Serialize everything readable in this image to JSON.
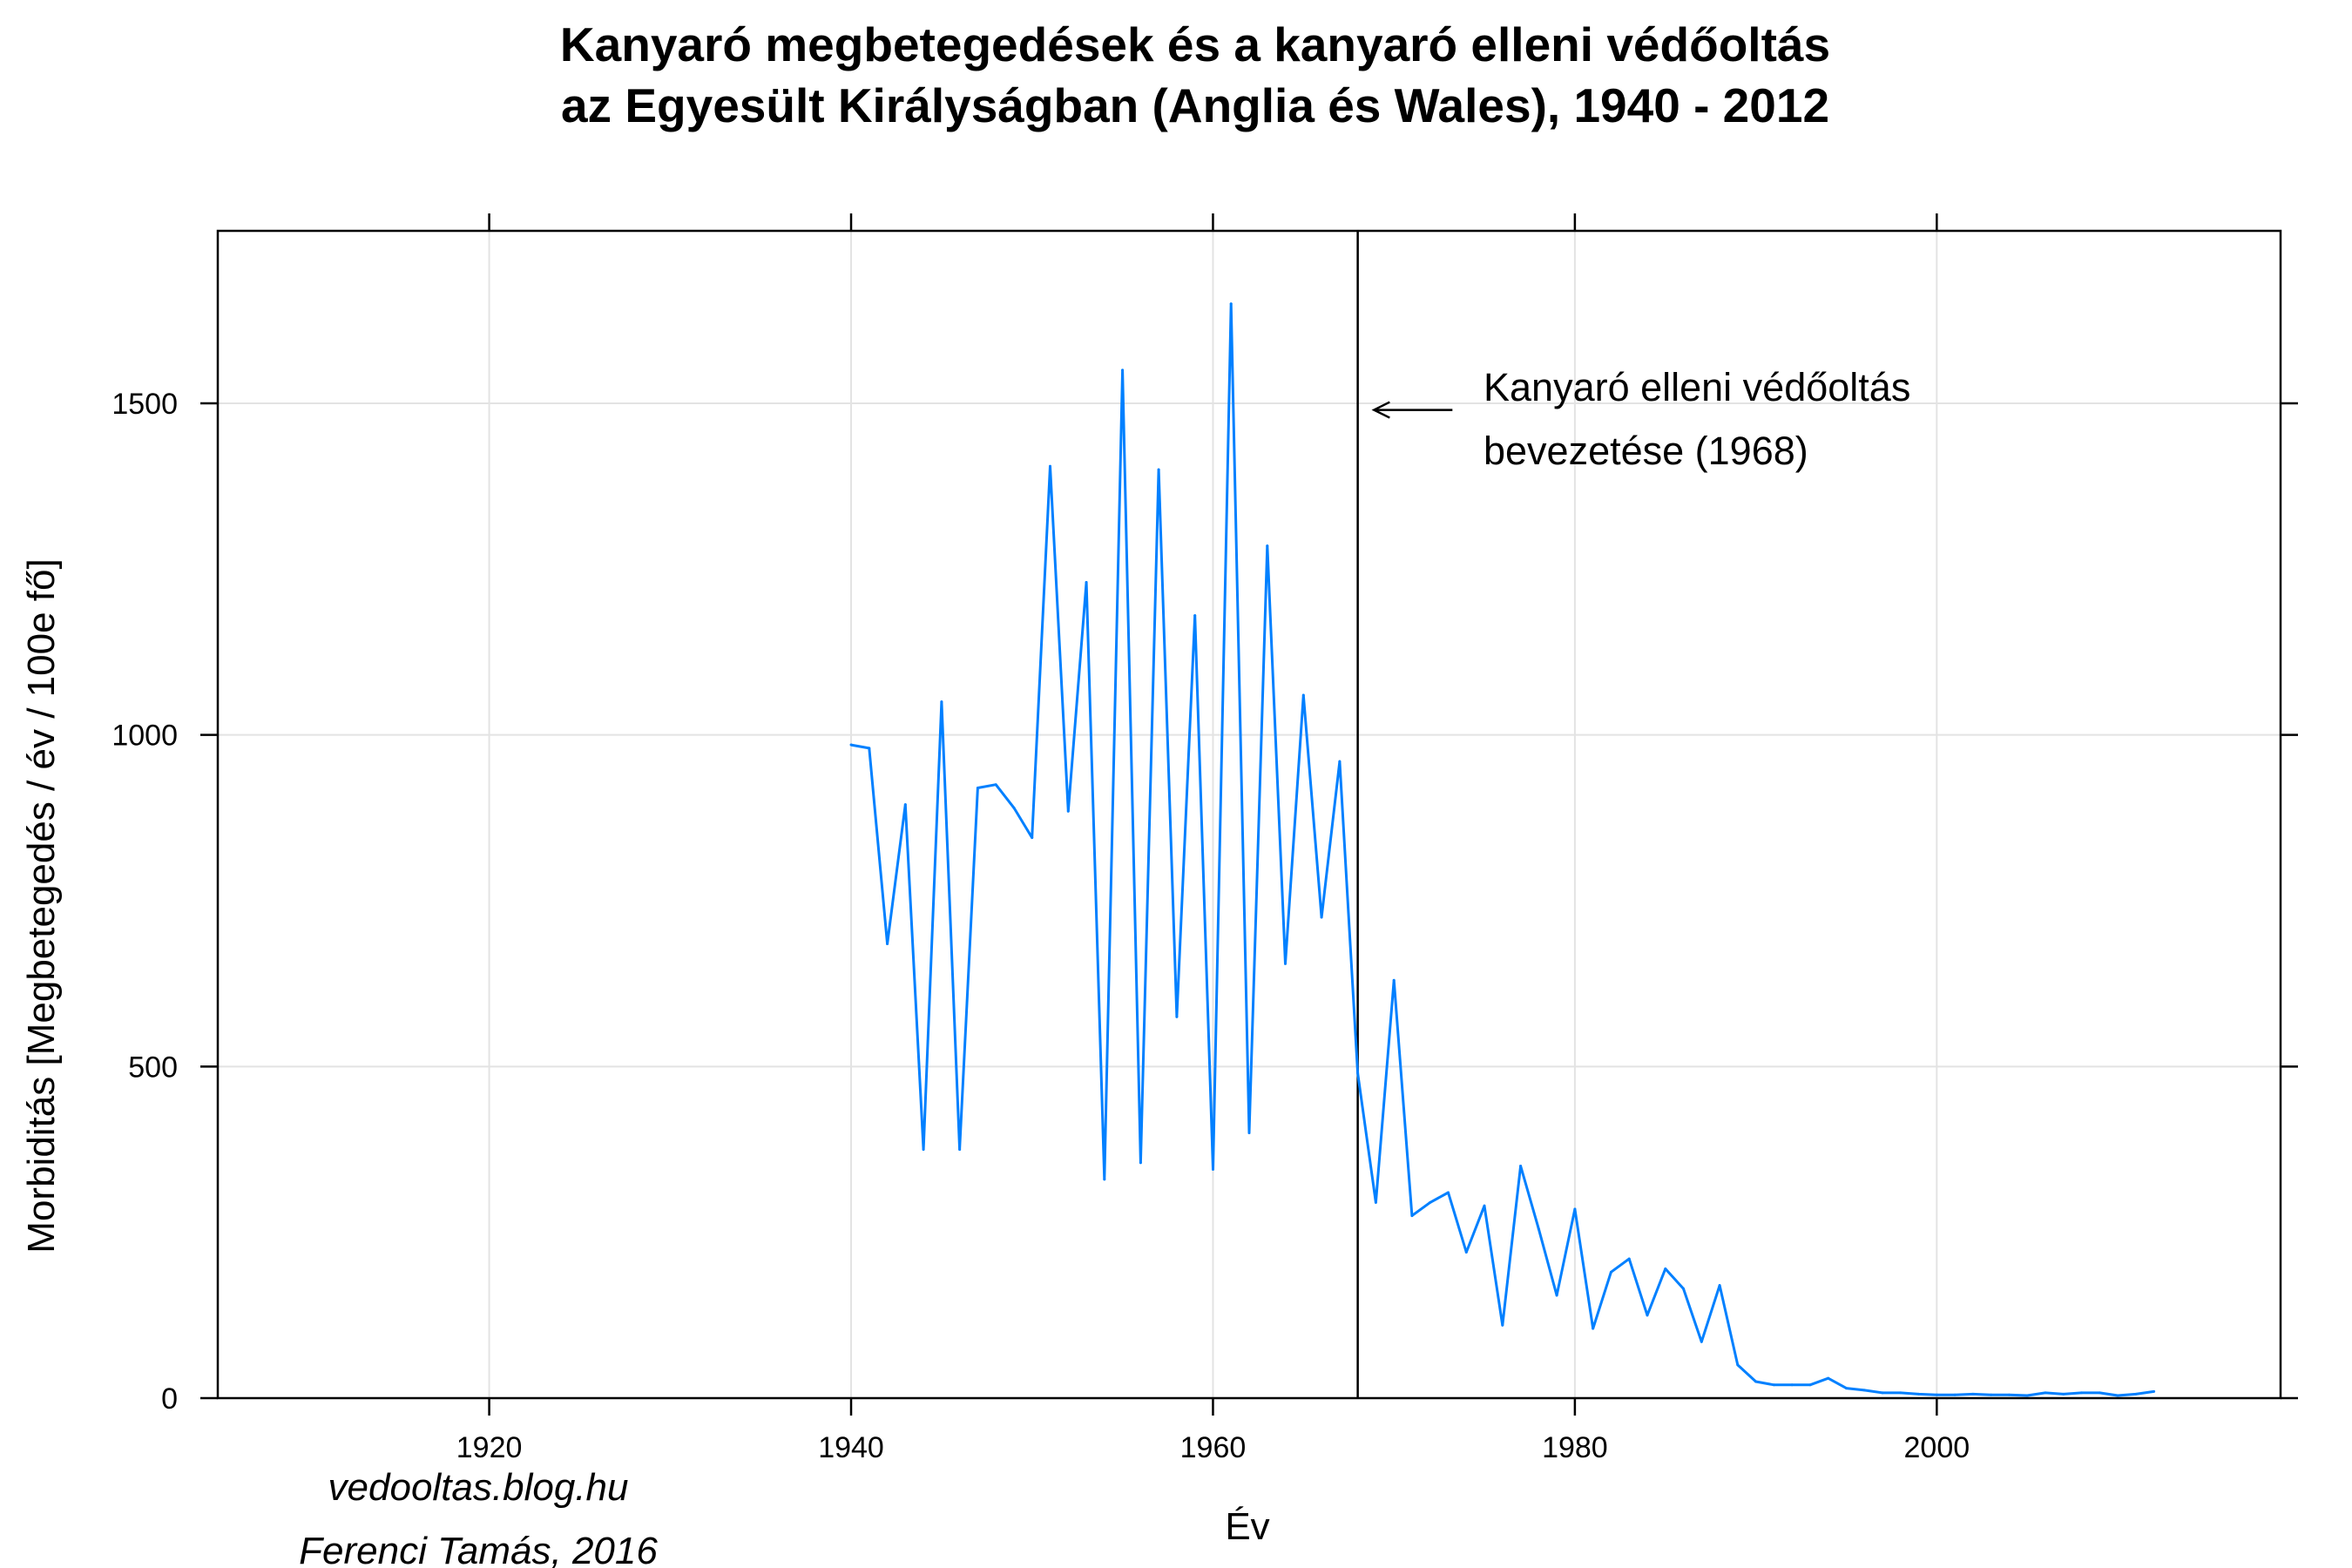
{
  "chart_data": {
    "type": "line",
    "title": "Kanyaró megbetegedések és a kanyaró elleni védőoltás",
    "subtitle": "az Egyesült Királyságban (Anglia és Wales), 1940 - 2012",
    "xlabel": "Év",
    "ylabel": "Morbiditás [Megbetegedés / év / 100e fő]",
    "xlim": [
      1905,
      2019
    ],
    "ylim": [
      0,
      1760
    ],
    "xticks": [
      1920,
      1940,
      1960,
      1980,
      2000
    ],
    "yticks": [
      0,
      500,
      1000,
      1500
    ],
    "grid": true,
    "line_color": "#0080ff",
    "vline": {
      "x": 1968,
      "color": "#000000"
    },
    "annotation": {
      "line1": "Kanyaró elleni védőoltás",
      "line2": "bevezetése (1968)",
      "arrow_target": {
        "x": 1968.9,
        "y": 1490
      }
    },
    "series": [
      {
        "x": [
          1940,
          1941,
          1942,
          1943,
          1944,
          1945,
          1946,
          1947,
          1948,
          1949,
          1950,
          1951,
          1952,
          1953,
          1954,
          1955,
          1956,
          1957,
          1958,
          1959,
          1960,
          1961,
          1962,
          1963,
          1964,
          1965,
          1966,
          1967,
          1968,
          1969,
          1970,
          1971,
          1972,
          1973,
          1974,
          1975,
          1976,
          1977,
          1978,
          1979,
          1980,
          1981,
          1982,
          1983,
          1984,
          1985,
          1986,
          1987,
          1988,
          1989,
          1990,
          1991,
          1992,
          1993,
          1994,
          1995,
          1996,
          1997,
          1998,
          1999,
          2000,
          2001,
          2002,
          2003,
          2004,
          2005,
          2006,
          2007,
          2008,
          2009,
          2010,
          2011,
          2012
        ],
        "values": [
          985,
          980,
          685,
          895,
          375,
          1050,
          375,
          920,
          925,
          890,
          845,
          1405,
          885,
          1230,
          330,
          1550,
          355,
          1400,
          575,
          1180,
          345,
          1650,
          400,
          1285,
          655,
          1060,
          725,
          960,
          490,
          295,
          630,
          275,
          295,
          310,
          220,
          290,
          110,
          350,
          255,
          155,
          285,
          105,
          190,
          210,
          125,
          195,
          165,
          85,
          170,
          50,
          25,
          20,
          20,
          20,
          30,
          15,
          12,
          8,
          8,
          6,
          5,
          5,
          6,
          5,
          5,
          4,
          8,
          6,
          8,
          8,
          4,
          6,
          10
        ]
      }
    ]
  },
  "credits": {
    "line1": "vedooltas.blog.hu",
    "line2": "Ferenci Tamás, 2016"
  }
}
